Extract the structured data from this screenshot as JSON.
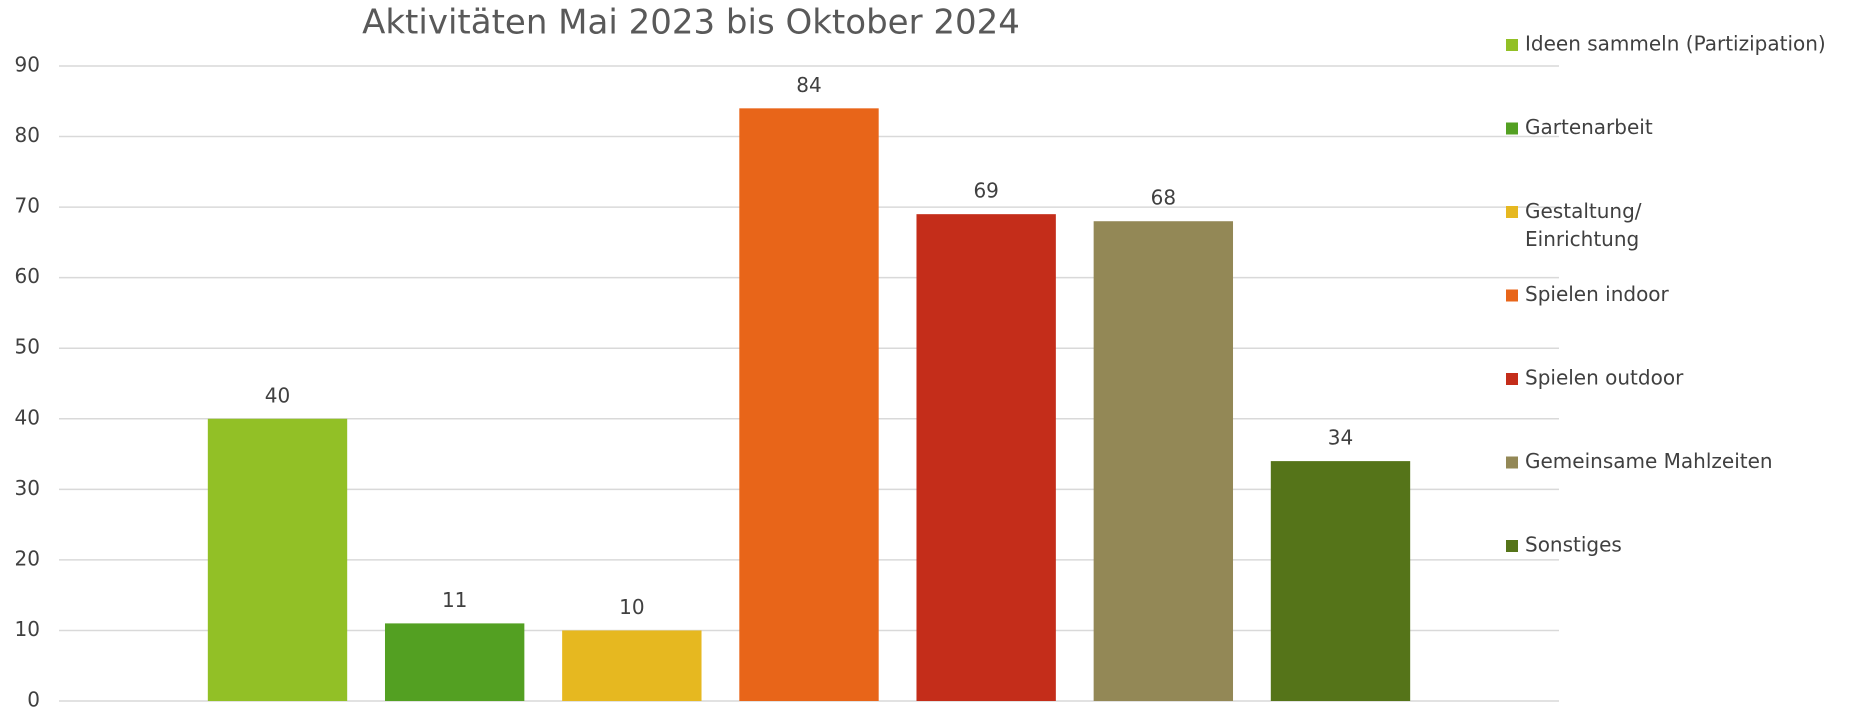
{
  "chart_data": {
    "type": "bar",
    "title": "Aktivitäten Mai 2023 bis Oktober 2024",
    "categories": [
      null
    ],
    "series": [
      {
        "name": "Ideen sammeln (Partizipation)",
        "color": "#92c026",
        "values": [
          40
        ]
      },
      {
        "name": "Gartenarbeit",
        "color": "#53a022",
        "values": [
          11
        ]
      },
      {
        "name": "Gestaltung/ Einrichtung",
        "color": "#e6b820",
        "values": [
          10
        ]
      },
      {
        "name": "Spielen indoor",
        "color": "#e86519",
        "values": [
          84
        ]
      },
      {
        "name": "Spielen outdoor",
        "color": "#c42d1a",
        "values": [
          69
        ]
      },
      {
        "name": "Gemeinsame Mahlzeiten",
        "color": "#938856",
        "values": [
          68
        ]
      },
      {
        "name": "Sonstiges",
        "color": "#557419",
        "values": [
          34
        ]
      }
    ],
    "ylim": [
      0,
      90
    ],
    "yticks": [
      0,
      10,
      20,
      30,
      40,
      50,
      60,
      70,
      80,
      90
    ],
    "grid": true,
    "legend": "right"
  }
}
